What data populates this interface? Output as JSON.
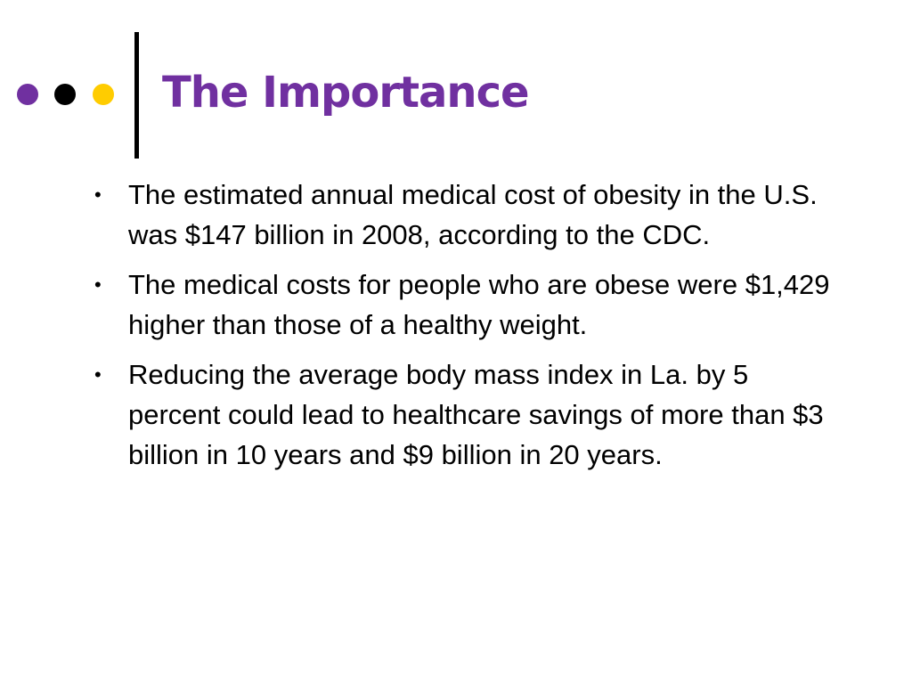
{
  "slide": {
    "title": "The Importance",
    "bullets": [
      "The estimated annual medical cost of obesity in the U.S. was $147 billion in 2008, according to the CDC.",
      "The medical costs for people who are obese were $1,429 higher than those of a healthy weight.",
      "Reducing the average body mass index in La. by 5 percent could lead to healthcare savings of more than $3 billion in 10 years and $9 billion in 20 years."
    ]
  }
}
